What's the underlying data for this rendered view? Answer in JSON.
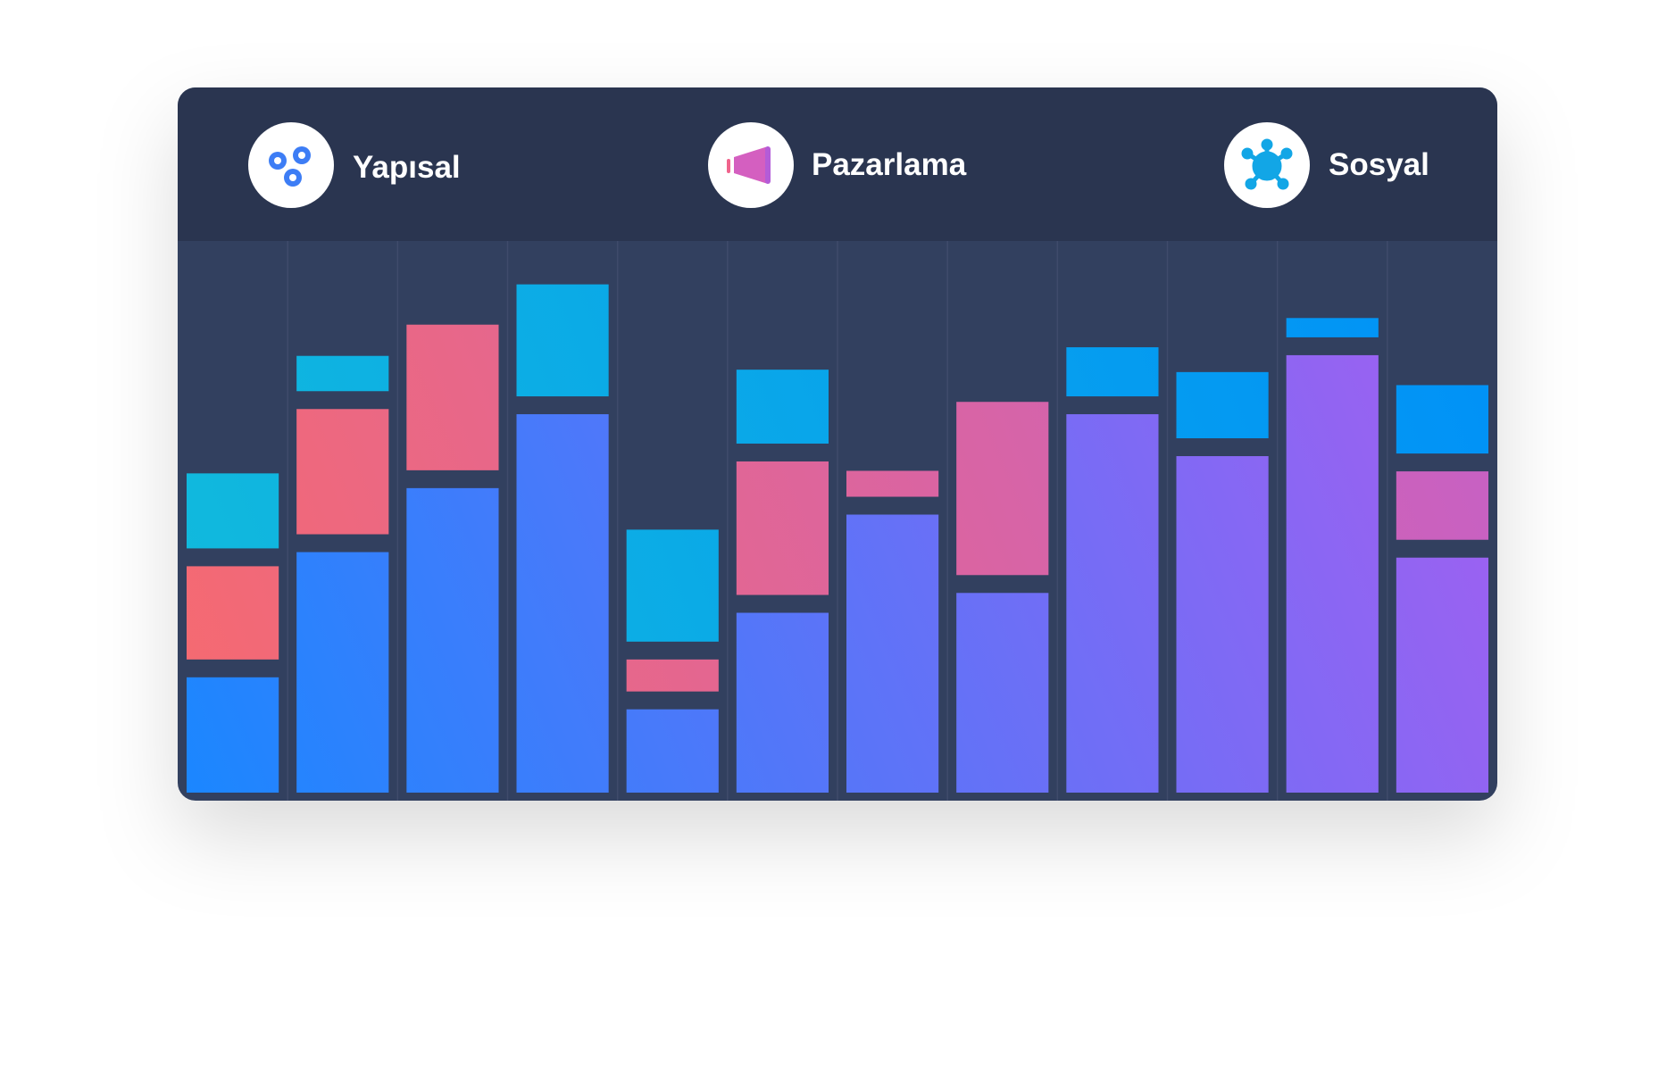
{
  "chart_data": {
    "type": "stacked-bar",
    "categories": [
      null,
      null,
      null,
      null,
      null,
      null,
      null,
      null,
      null,
      null,
      null,
      null
    ],
    "series": [
      {
        "name": "Yapısal",
        "colors": [
          "#1a87ff",
          "#a75ef0"
        ],
        "values": [
          20.9,
          43.6,
          55.2,
          68.6,
          15.1,
          32.6,
          50.4,
          36.2,
          68.6,
          61.0,
          79.3,
          42.6
        ]
      },
      {
        "name": "Pazarlama",
        "colors": [
          "#f76a6e",
          "#c460c9"
        ],
        "values": [
          16.9,
          22.7,
          26.4,
          null,
          5.8,
          24.2,
          4.7,
          31.4,
          null,
          null,
          null,
          12.4
        ]
      },
      {
        "name": "Sosyal",
        "colors": [
          "#12bcdb",
          "#0090f8"
        ],
        "values": [
          13.6,
          6.4,
          null,
          20.3,
          20.3,
          13.4,
          null,
          null,
          8.9,
          12.0,
          3.5,
          12.4
        ]
      }
    ],
    "ylim": [
      0,
      100
    ]
  }
}
